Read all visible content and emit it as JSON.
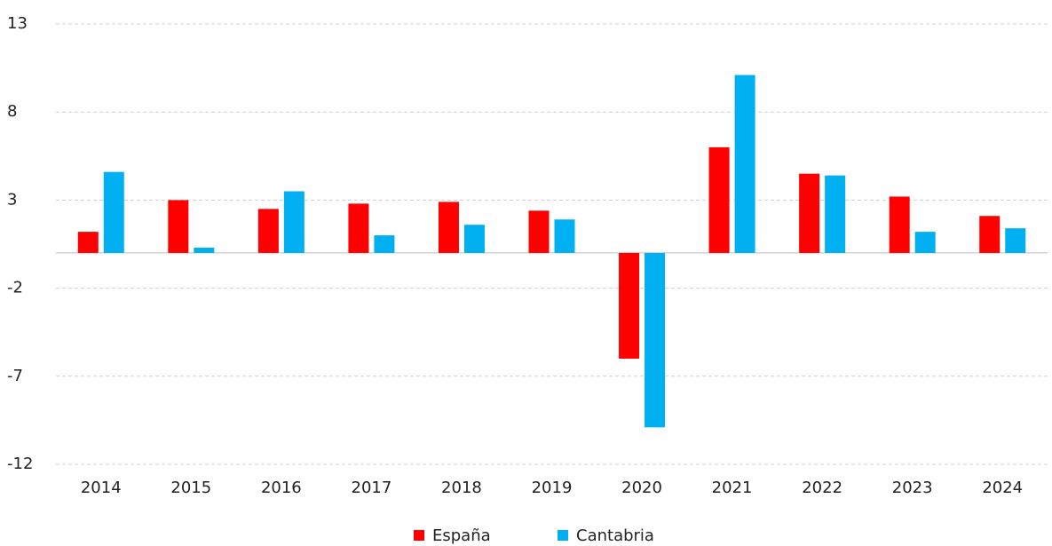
{
  "chart_data": {
    "type": "bar",
    "categories": [
      "2014",
      "2015",
      "2016",
      "2017",
      "2018",
      "2019",
      "2020",
      "2021",
      "2022",
      "2023",
      "2024"
    ],
    "series": [
      {
        "name": "España",
        "color": "#ff0000",
        "values": [
          1.2,
          3.0,
          2.5,
          2.8,
          2.9,
          2.4,
          -6.0,
          6.0,
          4.5,
          3.2,
          2.1
        ]
      },
      {
        "name": "Cantabria",
        "color": "#00b0f0",
        "values": [
          4.6,
          0.3,
          3.5,
          1.0,
          1.6,
          1.9,
          -9.9,
          10.1,
          4.4,
          1.2,
          1.4
        ]
      }
    ],
    "ylim": [
      -12,
      13
    ],
    "yticks": [
      -12,
      -7,
      -2,
      3,
      8,
      13
    ],
    "grid": true,
    "legend": "bottom"
  }
}
